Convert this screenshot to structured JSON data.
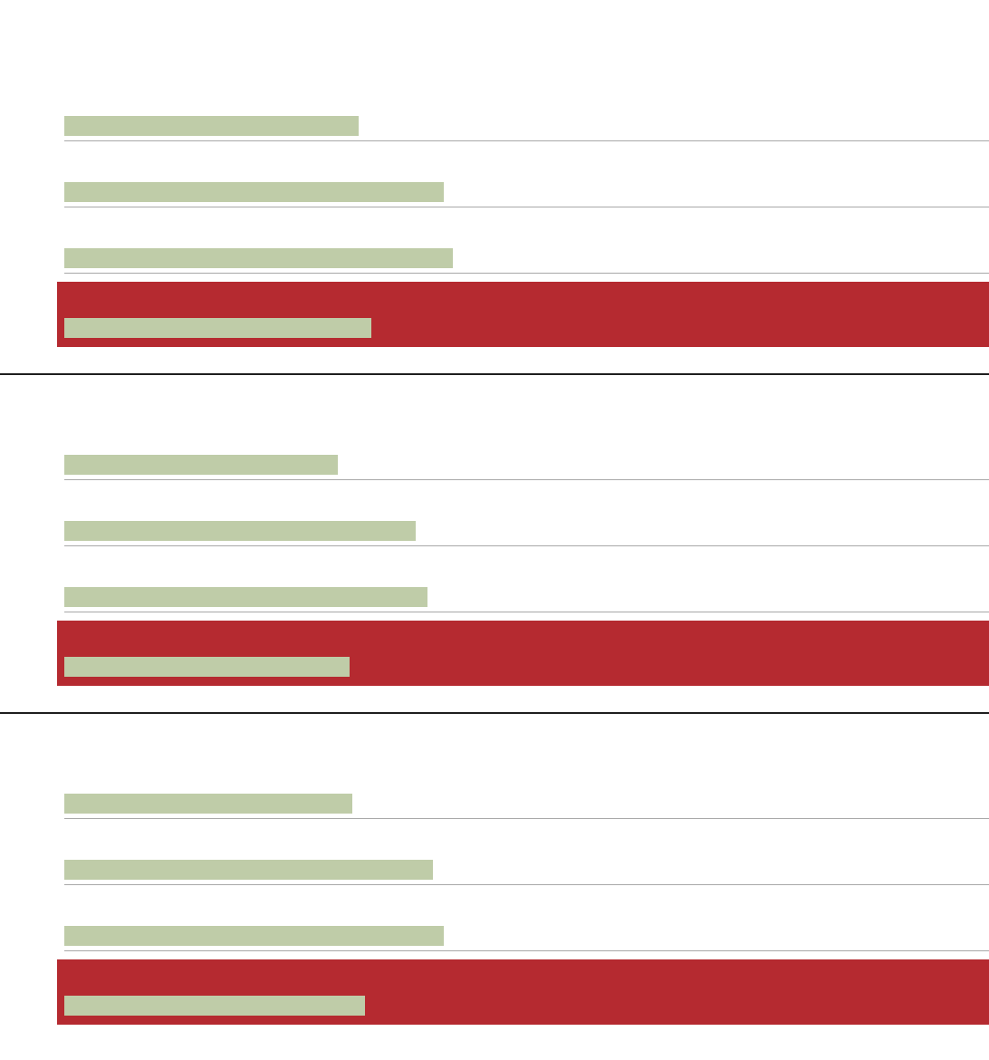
{
  "chart_data": {
    "type": "bar",
    "orientation": "horizontal",
    "groups": [
      {
        "values": [
          325,
          419,
          429,
          339
        ],
        "highlighted_index": 3
      },
      {
        "values": [
          302,
          388,
          401,
          315
        ],
        "highlighted_index": 3
      },
      {
        "values": [
          318,
          407,
          419,
          332
        ],
        "highlighted_index": 3
      }
    ],
    "xlim": [
      0,
      1021
    ],
    "axis_labels_shown": false,
    "tick_labels_shown": false,
    "legend": "none",
    "grid": false
  },
  "colors": {
    "background": "#ffffff",
    "bar": "#bfcca8",
    "highlight_band": "#b52a30",
    "row_rule": "#a8a8a8",
    "group_divider": "#1e1e1e"
  }
}
